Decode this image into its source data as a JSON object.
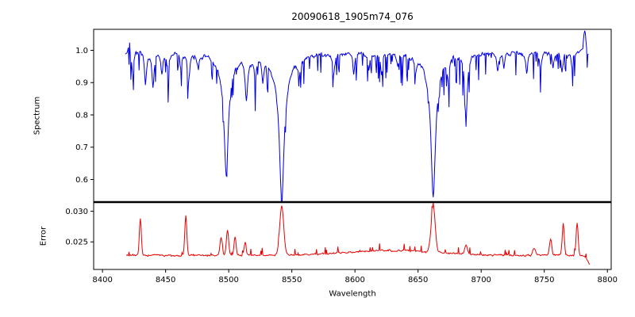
{
  "figure": {
    "title": "20090618_1905m74_076",
    "xlabel": "Wavelength",
    "spectrum_ylabel": "Spectrum",
    "error_ylabel": "Error"
  },
  "chart_data": {
    "type": "line",
    "title": "20090618_1905m74_076",
    "xlabel": "Wavelength",
    "x_range": [
      8393,
      8803
    ],
    "x_ticks": [
      8400,
      8450,
      8500,
      8550,
      8600,
      8650,
      8700,
      8750,
      8800
    ],
    "x_tick_labels": [
      "8400",
      "8450",
      "8500",
      "8550",
      "8600",
      "8650",
      "8700",
      "8750",
      "8800"
    ],
    "grid": false,
    "legend": "none",
    "subplots": [
      {
        "name": "spectrum",
        "ylabel": "Spectrum",
        "color": "#0000e0",
        "ylim": [
          0.53,
          1.065
        ],
        "yticks": [
          0.6,
          0.7,
          0.8,
          0.9,
          1.0
        ],
        "ytick_labels": [
          "0.6",
          "0.7",
          "0.8",
          "0.9",
          "1.0"
        ],
        "x_start": 8418,
        "x_end": 8785,
        "step": 0.5,
        "continuum": 0.995,
        "noise_amp": 0.02,
        "absorption_lines": [
          {
            "center": 8498.0,
            "depth": 0.3,
            "width": 1.8
          },
          {
            "center": 8498.0,
            "depth": 0.08,
            "width": 6.0
          },
          {
            "center": 8542.0,
            "depth": 0.36,
            "width": 2.0
          },
          {
            "center": 8542.0,
            "depth": 0.1,
            "width": 7.0
          },
          {
            "center": 8662.0,
            "depth": 0.36,
            "width": 2.0
          },
          {
            "center": 8662.0,
            "depth": 0.09,
            "width": 6.0
          },
          {
            "center": 8424,
            "depth": 0.07,
            "width": 0.8
          },
          {
            "center": 8434,
            "depth": 0.09,
            "width": 0.9
          },
          {
            "center": 8440,
            "depth": 0.11,
            "width": 1.0
          },
          {
            "center": 8447,
            "depth": 0.07,
            "width": 0.8
          },
          {
            "center": 8452,
            "depth": 0.06,
            "width": 0.7
          },
          {
            "center": 8462,
            "depth": 0.05,
            "width": 0.7
          },
          {
            "center": 8468,
            "depth": 0.1,
            "width": 0.9
          },
          {
            "center": 8476,
            "depth": 0.05,
            "width": 0.7
          },
          {
            "center": 8514,
            "depth": 0.13,
            "width": 1.1
          },
          {
            "center": 8521,
            "depth": 0.08,
            "width": 0.9
          },
          {
            "center": 8527,
            "depth": 0.06,
            "width": 0.8
          },
          {
            "center": 8556,
            "depth": 0.05,
            "width": 0.8
          },
          {
            "center": 8583,
            "depth": 0.07,
            "width": 0.9
          },
          {
            "center": 8599,
            "depth": 0.06,
            "width": 0.8
          },
          {
            "center": 8611,
            "depth": 0.05,
            "width": 0.8
          },
          {
            "center": 8621,
            "depth": 0.07,
            "width": 0.9
          },
          {
            "center": 8634,
            "depth": 0.04,
            "width": 0.7
          },
          {
            "center": 8648,
            "depth": 0.05,
            "width": 0.8
          },
          {
            "center": 8674,
            "depth": 0.07,
            "width": 0.9
          },
          {
            "center": 8688,
            "depth": 0.2,
            "width": 1.2
          },
          {
            "center": 8713,
            "depth": 0.06,
            "width": 0.8
          },
          {
            "center": 8718,
            "depth": 0.05,
            "width": 0.7
          },
          {
            "center": 8736,
            "depth": 0.07,
            "width": 0.9
          },
          {
            "center": 8747,
            "depth": 0.06,
            "width": 0.8
          },
          {
            "center": 8757,
            "depth": 0.05,
            "width": 0.8
          },
          {
            "center": 8764,
            "depth": 0.06,
            "width": 0.8
          },
          {
            "center": 8772,
            "depth": 0.05,
            "width": 0.7
          }
        ],
        "emission_spikes": [
          {
            "center": 8421,
            "amp": 0.05,
            "width": 0.6
          },
          {
            "center": 8782,
            "amp": 0.07,
            "width": 0.8
          }
        ]
      },
      {
        "name": "error",
        "ylabel": "Error",
        "color": "#e80000",
        "ylim": [
          0.0205,
          0.0315
        ],
        "yticks": [
          0.025,
          0.03
        ],
        "ytick_labels": [
          "0.025",
          "0.030"
        ],
        "x_start": 8419,
        "x_end": 8786,
        "step": 0.5,
        "baseline": 0.0228,
        "noise_amp": 0.0004,
        "spikes": [
          {
            "center": 8430,
            "amp": 0.006,
            "width": 0.8
          },
          {
            "center": 8466,
            "amp": 0.0065,
            "width": 0.8
          },
          {
            "center": 8494,
            "amp": 0.0028,
            "width": 0.9
          },
          {
            "center": 8499,
            "amp": 0.0042,
            "width": 0.9
          },
          {
            "center": 8505,
            "amp": 0.003,
            "width": 0.8
          },
          {
            "center": 8513,
            "amp": 0.002,
            "width": 0.8
          },
          {
            "center": 8542,
            "amp": 0.008,
            "width": 1.6
          },
          {
            "center": 8630,
            "amp": 0.0008,
            "width": 35
          },
          {
            "center": 8662,
            "amp": 0.0075,
            "width": 1.6
          },
          {
            "center": 8688,
            "amp": 0.0015,
            "width": 1.0
          },
          {
            "center": 8742,
            "amp": 0.0012,
            "width": 1.0
          },
          {
            "center": 8755,
            "amp": 0.0028,
            "width": 0.9
          },
          {
            "center": 8765,
            "amp": 0.0052,
            "width": 0.8
          },
          {
            "center": 8776,
            "amp": 0.0052,
            "width": 0.8
          },
          {
            "center": 8787,
            "amp": -0.0015,
            "width": 2.5
          }
        ]
      }
    ]
  }
}
